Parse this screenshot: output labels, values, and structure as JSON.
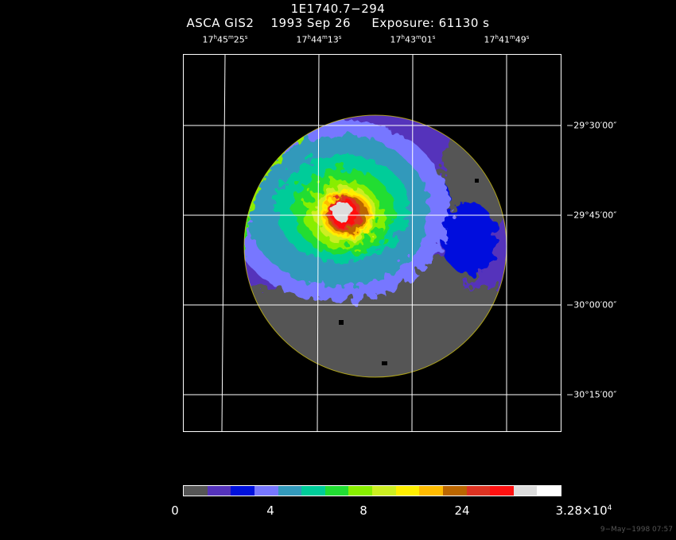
{
  "header": {
    "object": "1E1740.7−294",
    "instrument_line": "ASCA GIS2    1993 Sep 26     Exposure: 61130 s"
  },
  "ra_ticks": [
    {
      "h": "17",
      "m": "45",
      "s": "25"
    },
    {
      "h": "17",
      "m": "44",
      "s": "13"
    },
    {
      "h": "17",
      "m": "43",
      "s": "01"
    },
    {
      "h": "17",
      "m": "41",
      "s": "49"
    }
  ],
  "dec_ticks": [
    "−29°30′00″",
    "−29°45′00″",
    "−30°00′00″",
    "−30°15′00″"
  ],
  "colorbar": {
    "colors": [
      "#555555",
      "#5533bb",
      "#0011dd",
      "#7777ff",
      "#3399bb",
      "#00cc99",
      "#22dd33",
      "#88ee00",
      "#ccee22",
      "#ffee00",
      "#ffbb00",
      "#bb6600",
      "#dd3322",
      "#ff1111",
      "#dddddd",
      "#ffffff"
    ],
    "label_0": "0",
    "label_1": "4",
    "label_2": "8",
    "label_3": "24",
    "label_max_mantissa": "3.28×10",
    "label_max_exp": "4"
  },
  "timestamp": "9−May−1998 07:57"
}
